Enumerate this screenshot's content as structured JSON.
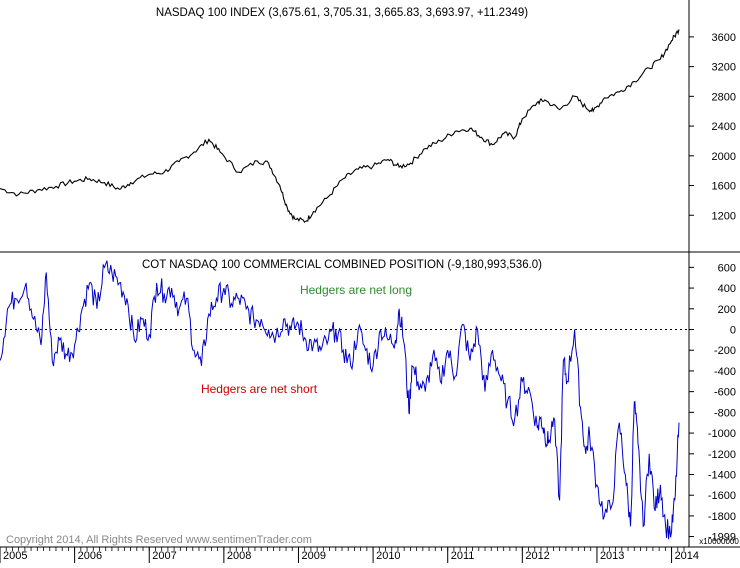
{
  "chart_data": [
    {
      "type": "line",
      "title": "NASDAQ 100 INDEX (3,675.61, 3,705.31, 3,665.83, 3,693.97, +11.2349)",
      "ylim": [
        800,
        3800
      ],
      "yticks": [
        1200,
        1600,
        2000,
        2400,
        2800,
        3200,
        3600
      ],
      "x_range": [
        2005.0,
        2014.18
      ],
      "series": [
        {
          "color": "#000000",
          "x": [
            2005.0,
            2005.25,
            2005.5,
            2005.75,
            2006.0,
            2006.2,
            2006.4,
            2006.6,
            2006.75,
            2007.0,
            2007.2,
            2007.4,
            2007.6,
            2007.8,
            2007.95,
            2008.2,
            2008.45,
            2008.6,
            2008.75,
            2008.85,
            2008.95,
            2009.1,
            2009.2,
            2009.4,
            2009.6,
            2009.8,
            2010.0,
            2010.2,
            2010.35,
            2010.5,
            2010.7,
            2010.9,
            2011.1,
            2011.3,
            2011.45,
            2011.6,
            2011.75,
            2011.9,
            2012.0,
            2012.2,
            2012.3,
            2012.5,
            2012.7,
            2012.85,
            2012.95,
            2013.1,
            2013.3,
            2013.5,
            2013.7,
            2013.85,
            2014.0,
            2014.1
          ],
          "values": [
            1560,
            1480,
            1540,
            1590,
            1660,
            1690,
            1640,
            1550,
            1640,
            1750,
            1780,
            1920,
            2050,
            2220,
            2050,
            1780,
            1930,
            1900,
            1600,
            1300,
            1150,
            1120,
            1250,
            1450,
            1690,
            1820,
            1860,
            1950,
            1850,
            1900,
            2100,
            2200,
            2330,
            2370,
            2250,
            2150,
            2300,
            2250,
            2500,
            2720,
            2750,
            2620,
            2800,
            2650,
            2600,
            2780,
            2860,
            3000,
            3180,
            3300,
            3550,
            3700
          ]
        }
      ]
    },
    {
      "type": "line",
      "title": "COT NASDAQ 100 COMMERCIAL COMBINED POSITION (-9,180,993,536.0)",
      "ylim": [
        -2100,
        700
      ],
      "yticks": [
        600,
        400,
        200,
        0,
        -200,
        -400,
        -600,
        -800,
        -1000,
        -1200,
        -1400,
        -1600,
        -1800,
        -1999
      ],
      "axis_multiplier": "x10000000",
      "zero_line": true,
      "x_range": [
        2005.0,
        2014.18
      ],
      "series": [
        {
          "color": "#0000cc",
          "x": [
            2005.0,
            2005.1,
            2005.2,
            2005.35,
            2005.45,
            2005.55,
            2005.62,
            2005.7,
            2005.8,
            2005.9,
            2006.0,
            2006.1,
            2006.2,
            2006.3,
            2006.4,
            2006.5,
            2006.6,
            2006.7,
            2006.8,
            2006.9,
            2007.0,
            2007.1,
            2007.2,
            2007.3,
            2007.4,
            2007.5,
            2007.6,
            2007.7,
            2007.8,
            2007.9,
            2008.0,
            2008.1,
            2008.2,
            2008.3,
            2008.4,
            2008.5,
            2008.6,
            2008.7,
            2008.8,
            2008.9,
            2009.0,
            2009.1,
            2009.2,
            2009.3,
            2009.4,
            2009.5,
            2009.6,
            2009.7,
            2009.8,
            2009.9,
            2010.0,
            2010.1,
            2010.2,
            2010.3,
            2010.35,
            2010.42,
            2010.48,
            2010.52,
            2010.6,
            2010.7,
            2010.8,
            2010.9,
            2011.0,
            2011.1,
            2011.2,
            2011.3,
            2011.4,
            2011.5,
            2011.6,
            2011.7,
            2011.8,
            2011.9,
            2012.0,
            2012.1,
            2012.2,
            2012.25,
            2012.3,
            2012.35,
            2012.42,
            2012.5,
            2012.55,
            2012.6,
            2012.7,
            2012.78,
            2012.85,
            2012.9,
            2013.0,
            2013.1,
            2013.2,
            2013.3,
            2013.38,
            2013.45,
            2013.5,
            2013.55,
            2013.62,
            2013.7,
            2013.78,
            2013.85,
            2013.92,
            2014.0,
            2014.05,
            2014.1
          ],
          "values": [
            -300,
            200,
            300,
            450,
            100,
            -150,
            550,
            -300,
            -100,
            -250,
            -150,
            200,
            450,
            200,
            600,
            550,
            450,
            300,
            -100,
            100,
            -50,
            450,
            350,
            400,
            200,
            300,
            -200,
            -350,
            150,
            300,
            400,
            250,
            300,
            200,
            100,
            100,
            0,
            -50,
            100,
            0,
            50,
            -100,
            -150,
            -200,
            -100,
            0,
            -200,
            -350,
            0,
            -200,
            -350,
            0,
            -100,
            -100,
            200,
            -150,
            -800,
            -350,
            -500,
            -600,
            -250,
            -500,
            -200,
            -450,
            50,
            -300,
            0,
            -600,
            -200,
            -450,
            -700,
            -850,
            -500,
            -600,
            -950,
            -850,
            -1000,
            -1100,
            -850,
            -1650,
            -300,
            -500,
            0,
            -750,
            -1200,
            -1000,
            -1500,
            -1800,
            -1700,
            -900,
            -1400,
            -1900,
            -700,
            -1100,
            -1900,
            -1200,
            -1750,
            -1500,
            -1900,
            -1950,
            -1600,
            -900
          ]
        }
      ],
      "annotations": [
        {
          "text": "Hedgers are net long",
          "color": "#2e8b2e"
        },
        {
          "text": "Hedgers are net short",
          "color": "#cc0000"
        }
      ]
    }
  ],
  "x_axis": {
    "tick_labels": [
      "2005",
      "2006",
      "2007",
      "2008",
      "2009",
      "2010",
      "2011",
      "2012",
      "2013",
      "2014"
    ]
  },
  "copyright": "Copyright 2014, All Rights Reserved  www.sentimenTrader.com"
}
